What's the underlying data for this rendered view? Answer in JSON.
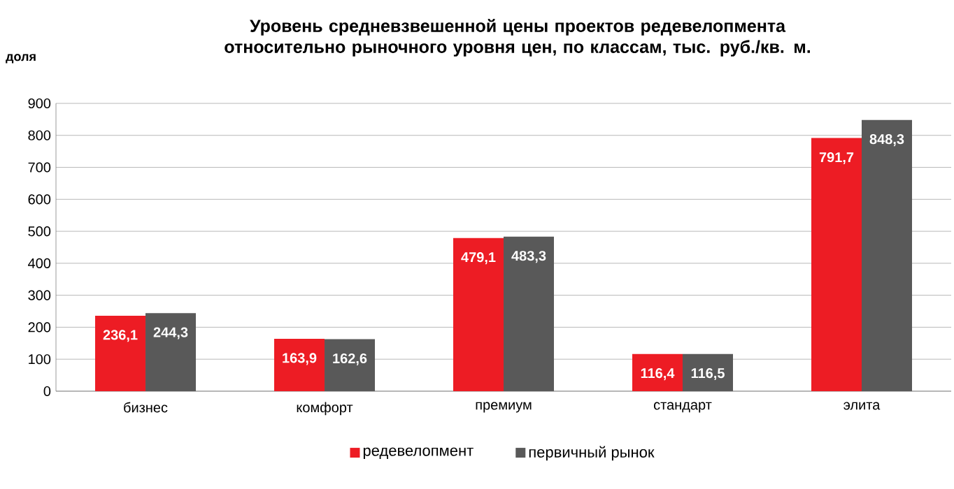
{
  "chart_data": {
    "type": "bar",
    "title": "Уровень средневзвешенной цены проектов редевелопмента\nотносительно рыночного уровня цен, по классам, тыс. руб./кв. м.",
    "ylabel": "доля",
    "categories": [
      "бизнес",
      "комфорт",
      "премиум",
      "стандарт",
      "элита"
    ],
    "series": [
      {
        "name": "редевелопмент",
        "color": "#ed1c24",
        "values": [
          236.1,
          163.9,
          479.1,
          116.4,
          791.7
        ],
        "value_labels": [
          "236,1",
          "163,9",
          "479,1",
          "116,4",
          "791,7"
        ]
      },
      {
        "name": "первичный рынок",
        "color": "#595959",
        "values": [
          244.3,
          162.6,
          483.3,
          116.5,
          848.3
        ],
        "value_labels": [
          "244,3",
          "162,6",
          "483,3",
          "116,5",
          "848,3"
        ]
      }
    ],
    "ylim": [
      0,
      900
    ],
    "yticks": [
      0,
      100,
      200,
      300,
      400,
      500,
      600,
      700,
      800,
      900
    ],
    "grid": "y",
    "legend": "bottom"
  }
}
